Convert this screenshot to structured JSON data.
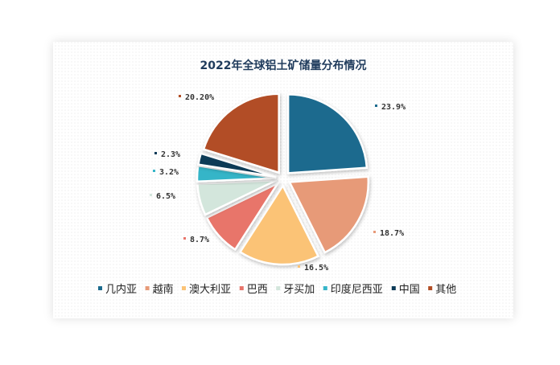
{
  "chart_data": {
    "type": "pie",
    "title": "2022年全球铝土矿储量分布情况",
    "categories": [
      "几内亚",
      "越南",
      "澳大利亚",
      "巴西",
      "牙买加",
      "印度尼西亚",
      "中国",
      "其他"
    ],
    "values": [
      23.9,
      18.7,
      16.5,
      8.7,
      6.5,
      3.2,
      2.3,
      20.2
    ],
    "labels": [
      "23.9%",
      "18.7%",
      "16.5%",
      "8.7%",
      "6.5%",
      "3.2%",
      "2.3%",
      "20.20%"
    ],
    "colors": [
      "#1c6b8e",
      "#e79a78",
      "#fbc376",
      "#e8746a",
      "#d3e6dc",
      "#36b5c8",
      "#0c3a57",
      "#b24e25"
    ],
    "legend_position": "bottom"
  }
}
